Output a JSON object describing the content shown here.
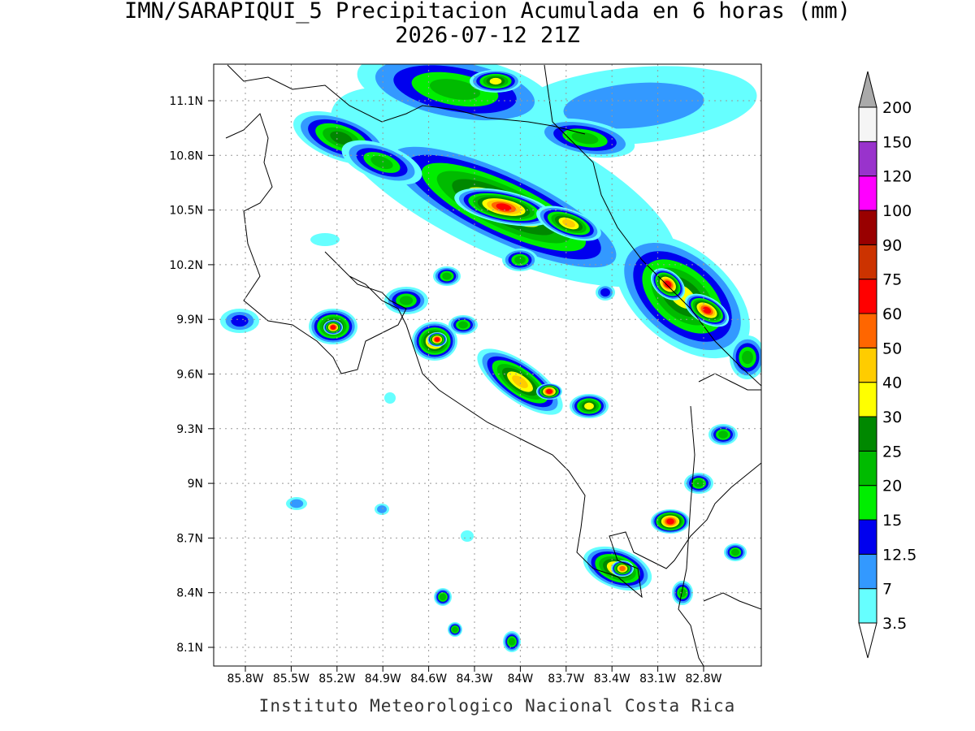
{
  "title": "IMN/SARAPIQUI_5 Precipitacion Acumulada en 6 horas (mm)",
  "subtitle": "2026-07-12 21Z",
  "lat_labels": [
    "11.1N",
    "10.8N",
    "10.5N",
    "10.2N",
    "9.9N",
    "9.6N",
    "9.3N",
    "9N",
    "8.7N",
    "8.4N",
    "8.1N"
  ],
  "lon_labels": [
    "85.8W",
    "85.5W",
    "85.2W",
    "84.9W",
    "84.6W",
    "84.3W",
    "84W",
    "83.7W",
    "83.4W",
    "83.1W",
    "82.8W"
  ],
  "colorbar": {
    "levels": [
      3.5,
      7,
      12.5,
      15,
      20,
      25,
      30,
      40,
      50,
      60,
      75,
      90,
      100,
      120,
      150,
      200
    ],
    "colors": [
      "#66ffff",
      "#3399ff",
      "#0000ee",
      "#00ee00",
      "#00bb00",
      "#008800",
      "#ffff00",
      "#ffcc00",
      "#ff6600",
      "#ff0000",
      "#cc3300",
      "#990000",
      "#ff00ff",
      "#9933cc",
      "#f5f5f5"
    ],
    "below_color": "#ffffff",
    "above_color": "#aaaaaa"
  },
  "footer": "Instituto Meteorologico Nacional Costa Rica"
}
